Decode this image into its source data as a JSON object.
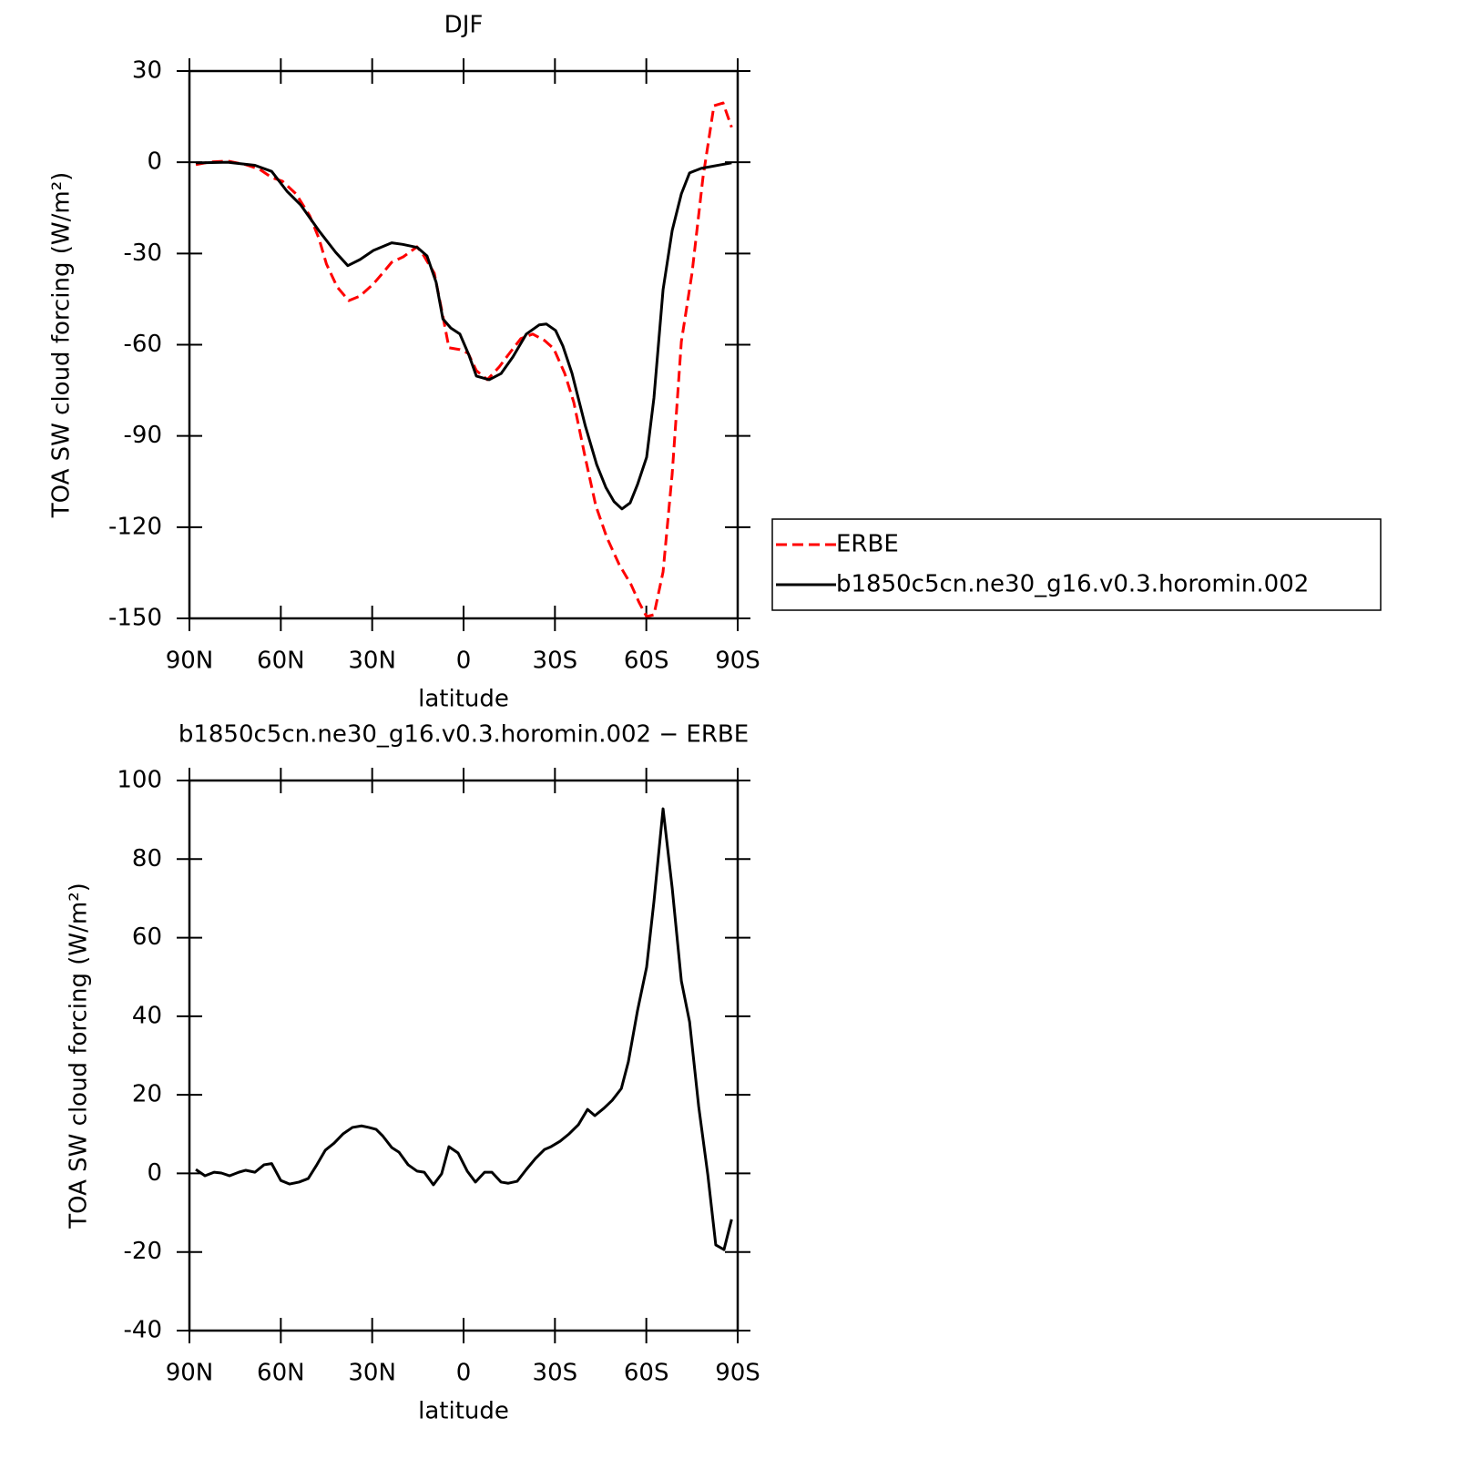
{
  "chart_data": [
    {
      "type": "line",
      "title": "DJF",
      "xlabel": "latitude",
      "ylabel": "TOA SW cloud forcing (W/m²)",
      "xlim": [
        90,
        -90
      ],
      "xticks": [
        {
          "value": 90,
          "label": "90N"
        },
        {
          "value": 60,
          "label": "60N"
        },
        {
          "value": 30,
          "label": "30N"
        },
        0,
        {
          "value": -30,
          "label": "30S"
        },
        {
          "value": -60,
          "label": "60S"
        },
        {
          "value": -90,
          "label": "90S"
        }
      ],
      "ylim": [
        -150,
        30
      ],
      "yticks": [
        -150,
        -120,
        -90,
        -60,
        -30,
        0,
        30
      ],
      "legend": "right",
      "series": [
        {
          "name": "ERBE",
          "color": "#ff0000",
          "dash": "dashed",
          "x": [
            87.9,
            83.4,
            77.4,
            71.5,
            67,
            63,
            59.5,
            55,
            50.5,
            47.5,
            45,
            41.5,
            37.7,
            34,
            29.6,
            26.6,
            23.6,
            19.8,
            15.3,
            13.2,
            9.6,
            7.2,
            4.8,
            1.2,
            -1.5,
            -4.2,
            -7.8,
            -11.7,
            -15.3,
            -18.8,
            -22.7,
            -26.6,
            -29.6,
            -33.2,
            -36.2,
            -39.8,
            -43.4,
            -47,
            -51.1,
            -55,
            -57.7,
            -60.1,
            -62.5,
            -65.5,
            -68.5,
            -71.5,
            -75,
            -78.6,
            -82.2,
            -85.2,
            -88
          ],
          "values": [
            -0.8,
            0.1,
            0.4,
            -0.8,
            -2.3,
            -5,
            -6.2,
            -10.4,
            -17.6,
            -25,
            -33.5,
            -41,
            -45.5,
            -44,
            -40,
            -36.5,
            -32.9,
            -31.1,
            -27.8,
            -30.5,
            -36.5,
            -48.5,
            -61,
            -61.6,
            -62.8,
            -68.5,
            -71.5,
            -67.3,
            -62.5,
            -58,
            -56.5,
            -58.6,
            -61.3,
            -69.4,
            -79,
            -96.4,
            -112.9,
            -123.3,
            -132.3,
            -138.9,
            -144.9,
            -149.4,
            -148.8,
            -134.7,
            -102.4,
            -59,
            -36.5,
            -5,
            18.6,
            19.5,
            11.5
          ]
        },
        {
          "name": "b1850c5cn.ne30_g16.v0.3.horomin.002",
          "color": "#000000",
          "dash": "solid",
          "x": [
            87.9,
            77.4,
            68.5,
            63,
            58,
            53.5,
            47.5,
            42,
            38,
            34,
            29.6,
            23.6,
            20,
            15.2,
            12,
            9,
            6.8,
            4.2,
            1.2,
            -1.8,
            -4.2,
            -8.4,
            -12.3,
            -16.2,
            -20.6,
            -24.8,
            -27.2,
            -30.2,
            -32.6,
            -35.6,
            -40,
            -43.7,
            -46.7,
            -49.4,
            -52,
            -54.7,
            -57.1,
            -60.1,
            -62.5,
            -65.5,
            -68.5,
            -71.5,
            -74.2,
            -78,
            -84,
            -88
          ],
          "values": [
            -0.2,
            0,
            -1,
            -3,
            -9.5,
            -14,
            -22.5,
            -29.6,
            -34,
            -32,
            -29,
            -26.5,
            -27,
            -28,
            -30.8,
            -39.5,
            -51.5,
            -54.5,
            -56.5,
            -63.5,
            -70.3,
            -71.5,
            -69.5,
            -64,
            -56.5,
            -53.5,
            -53.2,
            -55.3,
            -60.4,
            -69.4,
            -86.8,
            -99.4,
            -106.9,
            -111.6,
            -114,
            -112,
            -106,
            -97,
            -77.5,
            -41.9,
            -22.4,
            -10.4,
            -3.5,
            -2,
            -0.9,
            -0.2
          ]
        }
      ]
    },
    {
      "type": "line",
      "title": "b1850c5cn.ne30_g16.v0.3.horomin.002 − ERBE",
      "xlabel": "latitude",
      "ylabel": "TOA SW cloud forcing (W/m²)",
      "xlim": [
        90,
        -90
      ],
      "xticks": [
        {
          "value": 90,
          "label": "90N"
        },
        {
          "value": 60,
          "label": "60N"
        },
        {
          "value": 30,
          "label": "30N"
        },
        0,
        {
          "value": -30,
          "label": "30S"
        },
        {
          "value": -60,
          "label": "60S"
        },
        {
          "value": -90,
          "label": "90S"
        }
      ],
      "ylim": [
        -40,
        100
      ],
      "yticks": [
        -40,
        -20,
        0,
        20,
        40,
        60,
        80,
        100
      ],
      "color": "#000000",
      "x": [
        87.9,
        84.9,
        81.9,
        79.5,
        76.8,
        73.8,
        71.5,
        68.5,
        65.5,
        63,
        60,
        57.1,
        54,
        51,
        48.4,
        45.4,
        42.5,
        39.5,
        36.5,
        33.5,
        31.1,
        28.7,
        26.6,
        23.6,
        21.2,
        18.2,
        15.3,
        12.9,
        9.9,
        7.2,
        4.8,
        1.8,
        -1.2,
        -3.9,
        -6.9,
        -9.3,
        -12.3,
        -14.7,
        -17.6,
        -20.6,
        -23.6,
        -26.6,
        -28.7,
        -31.7,
        -34.7,
        -37.7,
        -40.7,
        -43.1,
        -46.1,
        -48.8,
        -51.8,
        -54.1,
        -57.1,
        -60.1,
        -62.5,
        -65.5,
        -68.5,
        -71.5,
        -74.2,
        -77.2,
        -80.2,
        -82.8,
        -85.5,
        -88
      ],
      "values": [
        1,
        -0.6,
        0.3,
        0.1,
        -0.6,
        0.3,
        0.8,
        0.3,
        2.2,
        2.5,
        -1.8,
        -2.7,
        -2.2,
        -1.3,
        1.9,
        5.9,
        7.7,
        10.1,
        11.7,
        12.1,
        11.7,
        11.2,
        9.6,
        6.6,
        5.4,
        2.2,
        0.6,
        0.3,
        -2.9,
        -0.1,
        6.8,
        5.2,
        0.6,
        -2.2,
        0.3,
        0.3,
        -2.2,
        -2.5,
        -2,
        1,
        3.8,
        6.1,
        6.8,
        8.2,
        10.1,
        12.4,
        16.3,
        14.7,
        16.6,
        18.6,
        21.6,
        28.4,
        41.4,
        52.5,
        69.2,
        92.8,
        72.6,
        49,
        38.6,
        17,
        -0.4,
        -18.2,
        -19.4,
        -11.7
      ]
    }
  ]
}
